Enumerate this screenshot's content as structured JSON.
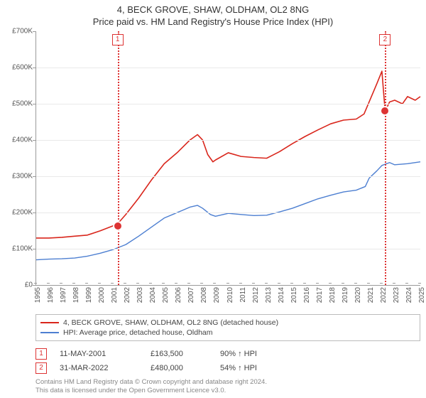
{
  "title": "4, BECK GROVE, SHAW, OLDHAM, OL2 8NG",
  "subtitle": "Price paid vs. HM Land Registry's House Price Index (HPI)",
  "chart": {
    "type": "line",
    "background_color": "#ffffff",
    "grid_color": "#e9e9e9",
    "axis_color": "#999999",
    "x": {
      "min": 1995,
      "max": 2025,
      "tick_step": 1,
      "label_fontsize": 10
    },
    "y": {
      "min": 0,
      "max": 700000,
      "tick_step": 100000,
      "prefix": "£",
      "suffix": "K",
      "divide": 1000,
      "label_fontsize": 10
    },
    "series": [
      {
        "key": "subject",
        "label": "4, BECK GROVE, SHAW, OLDHAM, OL2 8NG (detached house)",
        "color": "#d9261c",
        "line_width": 1.6,
        "data": [
          [
            1995,
            130000
          ],
          [
            1996,
            130000
          ],
          [
            1997,
            132000
          ],
          [
            1998,
            135000
          ],
          [
            1999,
            138000
          ],
          [
            2000,
            150000
          ],
          [
            2001,
            163500
          ],
          [
            2001.5,
            175000
          ],
          [
            2002,
            195000
          ],
          [
            2003,
            240000
          ],
          [
            2004,
            290000
          ],
          [
            2005,
            335000
          ],
          [
            2006,
            365000
          ],
          [
            2007,
            400000
          ],
          [
            2007.6,
            415000
          ],
          [
            2008,
            400000
          ],
          [
            2008.4,
            360000
          ],
          [
            2008.8,
            340000
          ],
          [
            2009,
            345000
          ],
          [
            2010,
            365000
          ],
          [
            2011,
            355000
          ],
          [
            2012,
            352000
          ],
          [
            2013,
            350000
          ],
          [
            2014,
            368000
          ],
          [
            2015,
            390000
          ],
          [
            2016,
            410000
          ],
          [
            2017,
            428000
          ],
          [
            2018,
            445000
          ],
          [
            2019,
            455000
          ],
          [
            2020,
            458000
          ],
          [
            2020.6,
            472000
          ],
          [
            2021,
            505000
          ],
          [
            2021.6,
            555000
          ],
          [
            2022,
            590000
          ],
          [
            2022.25,
            480000
          ],
          [
            2022.6,
            505000
          ],
          [
            2023,
            510000
          ],
          [
            2023.6,
            500000
          ],
          [
            2024,
            520000
          ],
          [
            2024.6,
            510000
          ],
          [
            2025,
            520000
          ]
        ]
      },
      {
        "key": "hpi",
        "label": "HPI: Average price, detached house, Oldham",
        "color": "#4d7fd1",
        "line_width": 1.4,
        "data": [
          [
            1995,
            70000
          ],
          [
            1996,
            72000
          ],
          [
            1997,
            73000
          ],
          [
            1998,
            75000
          ],
          [
            1999,
            80000
          ],
          [
            2000,
            88000
          ],
          [
            2001,
            98000
          ],
          [
            2002,
            112000
          ],
          [
            2003,
            135000
          ],
          [
            2004,
            160000
          ],
          [
            2005,
            185000
          ],
          [
            2006,
            200000
          ],
          [
            2007,
            215000
          ],
          [
            2007.6,
            220000
          ],
          [
            2008,
            212000
          ],
          [
            2008.6,
            195000
          ],
          [
            2009,
            190000
          ],
          [
            2010,
            198000
          ],
          [
            2011,
            195000
          ],
          [
            2012,
            192000
          ],
          [
            2013,
            193000
          ],
          [
            2014,
            202000
          ],
          [
            2015,
            212000
          ],
          [
            2016,
            225000
          ],
          [
            2017,
            238000
          ],
          [
            2018,
            248000
          ],
          [
            2019,
            257000
          ],
          [
            2020,
            262000
          ],
          [
            2020.7,
            272000
          ],
          [
            2021,
            295000
          ],
          [
            2021.6,
            315000
          ],
          [
            2022,
            330000
          ],
          [
            2022.6,
            338000
          ],
          [
            2023,
            332000
          ],
          [
            2024,
            335000
          ],
          [
            2025,
            340000
          ]
        ]
      }
    ],
    "sale_markers": [
      {
        "n": "1",
        "x": 2001.36,
        "y": 163500
      },
      {
        "n": "2",
        "x": 2022.25,
        "y": 480000
      }
    ]
  },
  "legend": {
    "items": [
      {
        "color": "#d9261c",
        "label_ref": "chart.series.0.label"
      },
      {
        "color": "#4d7fd1",
        "label_ref": "chart.series.1.label"
      }
    ]
  },
  "sales": [
    {
      "n": "1",
      "date": "11-MAY-2001",
      "price": "£163,500",
      "pct": "90% ↑ HPI"
    },
    {
      "n": "2",
      "date": "31-MAR-2022",
      "price": "£480,000",
      "pct": "54% ↑ HPI"
    }
  ],
  "footer": {
    "line1": "Contains HM Land Registry data © Crown copyright and database right 2024.",
    "line2": "This data is licensed under the Open Government Licence v3.0."
  }
}
